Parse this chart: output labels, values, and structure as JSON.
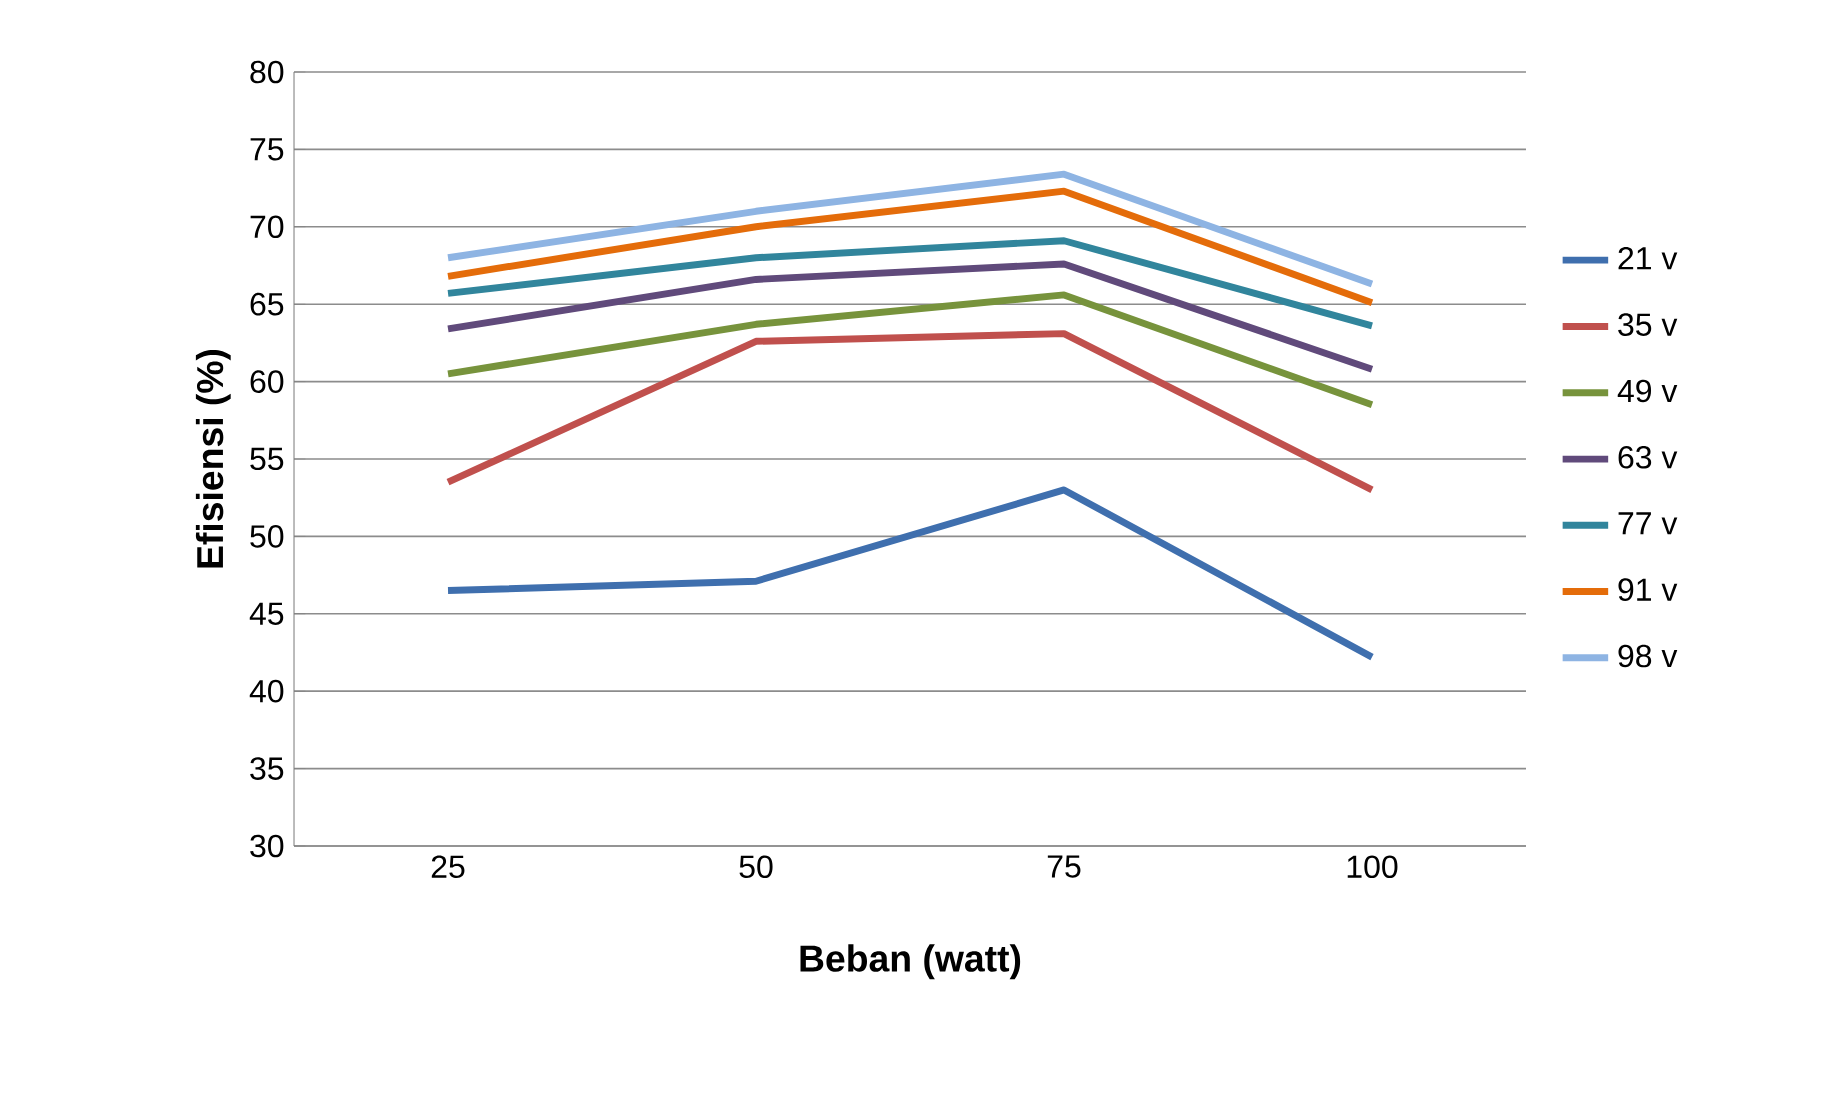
{
  "chart_data": {
    "type": "line",
    "xlabel": "Beban (watt)",
    "ylabel": "Efisiensi (%)",
    "categories": [
      "25",
      "50",
      "75",
      "100"
    ],
    "series": [
      {
        "name": "21 v",
        "color": "#3f6fae",
        "values": [
          46.5,
          47.1,
          53.0,
          42.2
        ]
      },
      {
        "name": "35 v",
        "color": "#c0504d",
        "values": [
          53.5,
          62.6,
          63.1,
          53.0
        ]
      },
      {
        "name": "49 v",
        "color": "#77933c",
        "values": [
          60.5,
          63.7,
          65.6,
          58.5
        ]
      },
      {
        "name": "63 v",
        "color": "#604a7b",
        "values": [
          63.4,
          66.6,
          67.6,
          60.8
        ]
      },
      {
        "name": "77 v",
        "color": "#31859c",
        "values": [
          65.7,
          68.0,
          69.1,
          63.6
        ]
      },
      {
        "name": "91 v",
        "color": "#e46c0a",
        "values": [
          66.8,
          70.0,
          72.3,
          65.1
        ]
      },
      {
        "name": "98 v",
        "color": "#8eb4e3",
        "values": [
          68.0,
          71.0,
          73.4,
          66.3
        ]
      }
    ],
    "ylim": [
      30,
      80
    ],
    "yticks": [
      30,
      35,
      40,
      45,
      50,
      55,
      60,
      65,
      70,
      75,
      80
    ],
    "grid": "y",
    "legend": "right",
    "marker": "none",
    "line_style": "solid"
  }
}
